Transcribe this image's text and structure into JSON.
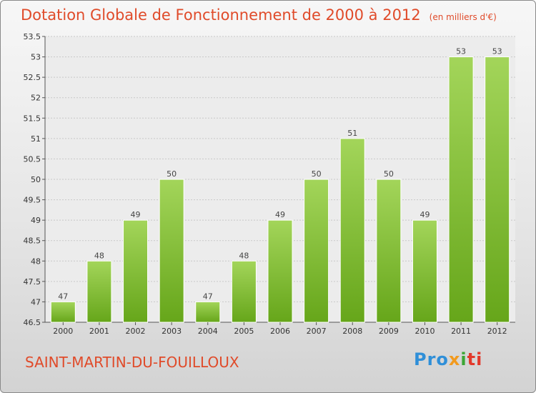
{
  "title": "Dotation Globale de Fonctionnement de 2000 à 2012",
  "unit": "(en milliers d'€)",
  "commune": "SAINT-MARTIN-DU-FOUILLOUX",
  "logo": {
    "parts": [
      "Pro",
      "x",
      "i",
      "ti"
    ]
  },
  "colors": {
    "bar_top": "#a3d55a",
    "bar_bottom": "#66a61a",
    "title": "#e04b2a",
    "grid": "#c8c8c8"
  },
  "chart_data": {
    "type": "bar",
    "title": "Dotation Globale de Fonctionnement de 2000 à 2012",
    "categories": [
      "2000",
      "2001",
      "2002",
      "2003",
      "2004",
      "2005",
      "2006",
      "2007",
      "2008",
      "2009",
      "2010",
      "2011",
      "2012"
    ],
    "values": [
      47,
      48,
      49,
      50,
      47,
      48,
      49,
      50,
      51,
      50,
      49,
      53,
      53
    ],
    "data_labels": [
      "47",
      "48",
      "49",
      "50",
      "47",
      "48",
      "49",
      "50",
      "51",
      "50",
      "49",
      "53",
      "53"
    ],
    "ylim": [
      46.5,
      53.5
    ],
    "yticks": [
      "46.5",
      "47",
      "47.5",
      "48",
      "48.5",
      "49",
      "49.5",
      "50",
      "50.5",
      "51",
      "51.5",
      "52",
      "52.5",
      "53",
      "53.5"
    ],
    "grid": true
  }
}
